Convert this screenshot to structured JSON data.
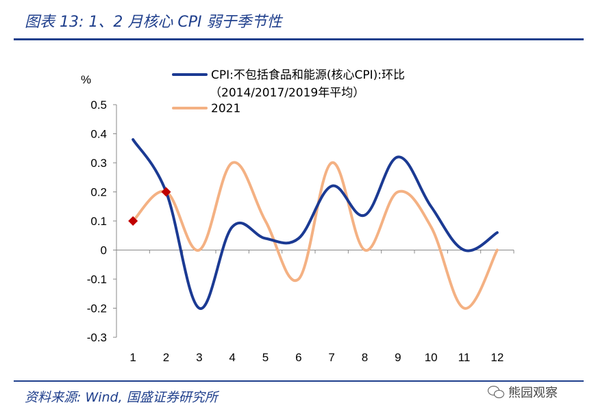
{
  "header": {
    "title": "图表 13:  1、2 月核心 CPI 弱于季节性"
  },
  "footer": {
    "source": "资料来源:  Wind,  国盛证券研究所",
    "watermark": "熊园观察"
  },
  "colors": {
    "brand": "#1f3f8c",
    "series_core": "#1b3a93",
    "series_2021": "#f4b183",
    "marker": "#c00000"
  },
  "chart_data": {
    "type": "line",
    "ylabel": "%",
    "ylim": [
      -0.3,
      0.5
    ],
    "yticks": [
      "0.5",
      "0.4",
      "0.3",
      "0.2",
      "0.1",
      "0",
      "-0.1",
      "-0.2",
      "-0.3"
    ],
    "ytick_values": [
      0.5,
      0.4,
      0.3,
      0.2,
      0.1,
      0,
      -0.1,
      -0.2,
      -0.3
    ],
    "categories": [
      "1",
      "2",
      "3",
      "4",
      "5",
      "6",
      "7",
      "8",
      "9",
      "10",
      "11",
      "12"
    ],
    "legend_position": "top-right",
    "series": [
      {
        "name": "CPI:不包括食品和能源(核心CPI):环比",
        "name_line2": "（2014/2017/2019年平均）",
        "values": [
          0.38,
          0.2,
          -0.2,
          0.08,
          0.04,
          0.04,
          0.22,
          0.12,
          0.32,
          0.15,
          0.0,
          0.06
        ]
      },
      {
        "name": "2021",
        "values": [
          0.1,
          0.2,
          0.0,
          0.3,
          0.1,
          -0.1,
          0.3,
          0.0,
          0.2,
          0.08,
          -0.2,
          0.0
        ],
        "markers_at": [
          1,
          2
        ]
      }
    ]
  }
}
